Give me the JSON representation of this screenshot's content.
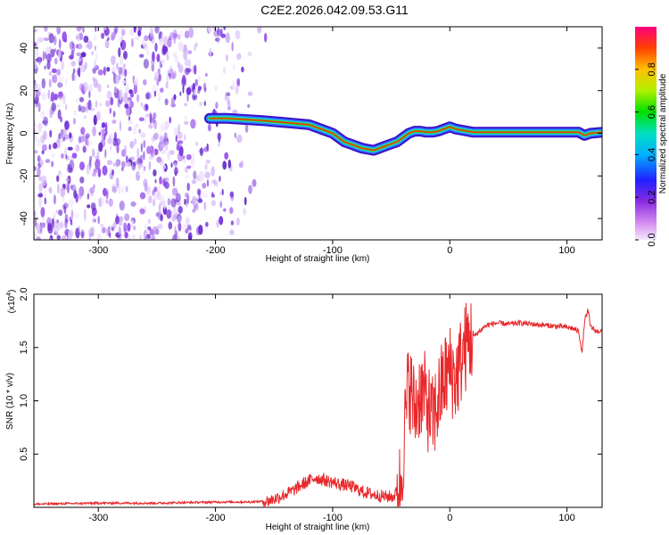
{
  "title": "C2E2.2026.042.09.53.G11",
  "colors": {
    "line": "#e8282b",
    "axis": "#000000",
    "noise": "#6e2bd6",
    "background": "#ffffff"
  },
  "chart_data": [
    {
      "type": "heatmap",
      "panel": "top",
      "xlabel": "Height of straight line (km)",
      "ylabel": "Frequency (Hz)",
      "xlim": [
        -355,
        130
      ],
      "ylim": [
        -50,
        50
      ],
      "xticks": [
        -300,
        -200,
        -100,
        0,
        100
      ],
      "yticks": [
        -40,
        -20,
        0,
        20,
        40
      ],
      "colorbar": {
        "label": "Normalized spectral amplitude",
        "range": [
          0.0,
          1.0
        ],
        "ticks": [
          0.0,
          0.2,
          0.4,
          0.6,
          0.8
        ],
        "tick_labels": [
          "0.0",
          "0.2",
          "0.4",
          "0.6",
          "0.8"
        ]
      },
      "noise_region_x": [
        -355,
        -155
      ],
      "trace": {
        "x": [
          -205,
          -190,
          -175,
          -160,
          -150,
          -140,
          -130,
          -120,
          -110,
          -100,
          -95,
          -90,
          -85,
          -80,
          -75,
          -70,
          -65,
          -60,
          -55,
          -50,
          -45,
          -40,
          -35,
          -30,
          -25,
          -20,
          -15,
          -10,
          -5,
          0,
          5,
          10,
          20,
          40,
          60,
          80,
          100,
          110,
          115,
          120,
          130
        ],
        "freq": [
          7,
          7,
          6.5,
          6,
          5.5,
          5,
          4.5,
          4,
          2,
          0,
          -2,
          -4,
          -5,
          -6,
          -7,
          -7.5,
          -8,
          -7,
          -6,
          -5,
          -4,
          -2,
          0,
          1,
          1,
          0.5,
          0.5,
          1,
          2,
          3,
          2,
          1.5,
          0.5,
          0.5,
          0.5,
          0.5,
          0.5,
          0.5,
          -1,
          0,
          0.5
        ]
      }
    },
    {
      "type": "line",
      "panel": "bottom",
      "xlabel": "Height of straight line (km)",
      "ylabel": "SNR (10 * v/v)",
      "multiplier": "(x10",
      "multiplier_exp": "4",
      "multiplier_close": ")",
      "xlim": [
        -355,
        130
      ],
      "ylim": [
        0,
        2.0
      ],
      "xticks": [
        -300,
        -200,
        -100,
        0,
        100
      ],
      "yticks": [
        0.5,
        1.0,
        1.5,
        2.0
      ],
      "ytick_labels": [
        "0.5",
        "1.0",
        "1.5",
        "2.0"
      ],
      "series": [
        {
          "name": "SNR",
          "x": [
            -355,
            -300,
            -250,
            -200,
            -170,
            -155,
            -145,
            -135,
            -125,
            -115,
            -105,
            -95,
            -85,
            -75,
            -65,
            -55,
            -48,
            -42,
            -38,
            -35,
            -30,
            -25,
            -20,
            -15,
            -10,
            -5,
            0,
            5,
            10,
            15,
            20,
            25,
            30,
            35,
            40,
            50,
            60,
            70,
            80,
            90,
            100,
            105,
            110,
            113,
            115,
            118,
            120,
            125,
            130
          ],
          "y": [
            0.03,
            0.04,
            0.04,
            0.05,
            0.05,
            0.06,
            0.1,
            0.15,
            0.22,
            0.28,
            0.25,
            0.22,
            0.2,
            0.15,
            0.12,
            0.1,
            0.1,
            0.2,
            0.8,
            1.2,
            0.9,
            1.1,
            1.0,
            0.8,
            1.0,
            1.2,
            1.3,
            1.2,
            1.4,
            1.55,
            1.6,
            1.65,
            1.7,
            1.72,
            1.73,
            1.72,
            1.73,
            1.72,
            1.71,
            1.7,
            1.69,
            1.68,
            1.65,
            1.45,
            1.75,
            1.85,
            1.7,
            1.65,
            1.66
          ]
        }
      ]
    }
  ]
}
